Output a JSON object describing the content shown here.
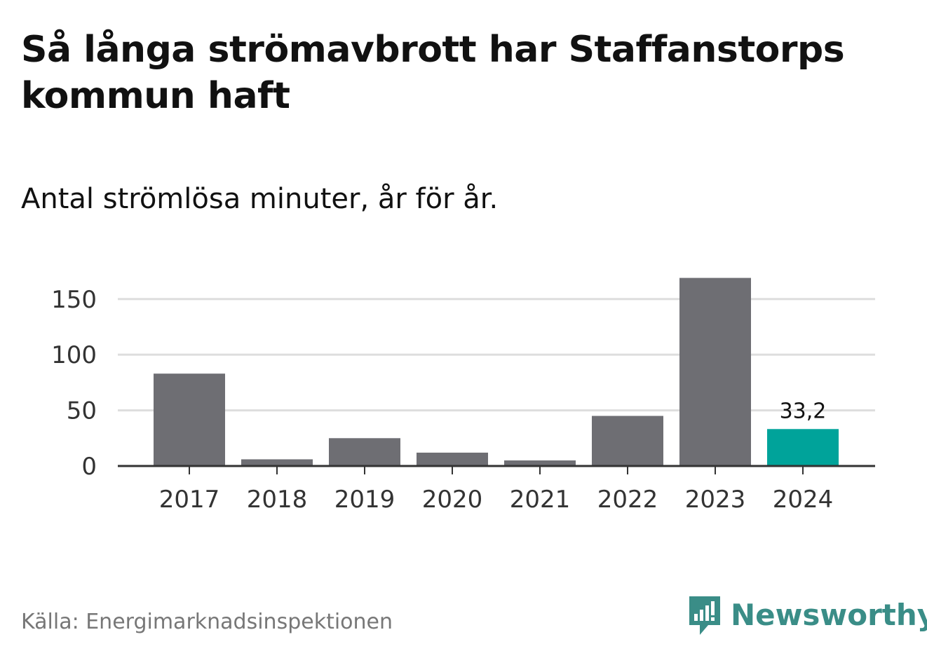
{
  "title": "Så långa strömavbrott har Staffanstorps kommun haft",
  "subtitle": "Antal strömlösa minuter, år för år.",
  "source": "Källa: Energimarknadsinspektionen",
  "brand": {
    "name": "Newsworthy",
    "icon": "newsworthy-logo-icon",
    "color": "#3a8d87"
  },
  "colors": {
    "bar": "#6e6e73",
    "highlight": "#00a39a",
    "grid": "#dddddd",
    "axis": "#333333"
  },
  "chart_data": {
    "type": "bar",
    "categories": [
      "2017",
      "2018",
      "2019",
      "2020",
      "2021",
      "2022",
      "2023",
      "2024"
    ],
    "values": [
      83,
      6,
      25,
      12,
      5,
      45,
      169,
      33.2
    ],
    "ylim": [
      0,
      170
    ],
    "yticks": [
      0,
      50,
      100,
      150
    ],
    "ytick_labels": [
      "0",
      "50",
      "100",
      "150"
    ],
    "highlight_index": 7,
    "data_labels": [
      {
        "index": 7,
        "text": "33,2"
      }
    ],
    "grid": true,
    "xlabel": "",
    "ylabel": ""
  }
}
